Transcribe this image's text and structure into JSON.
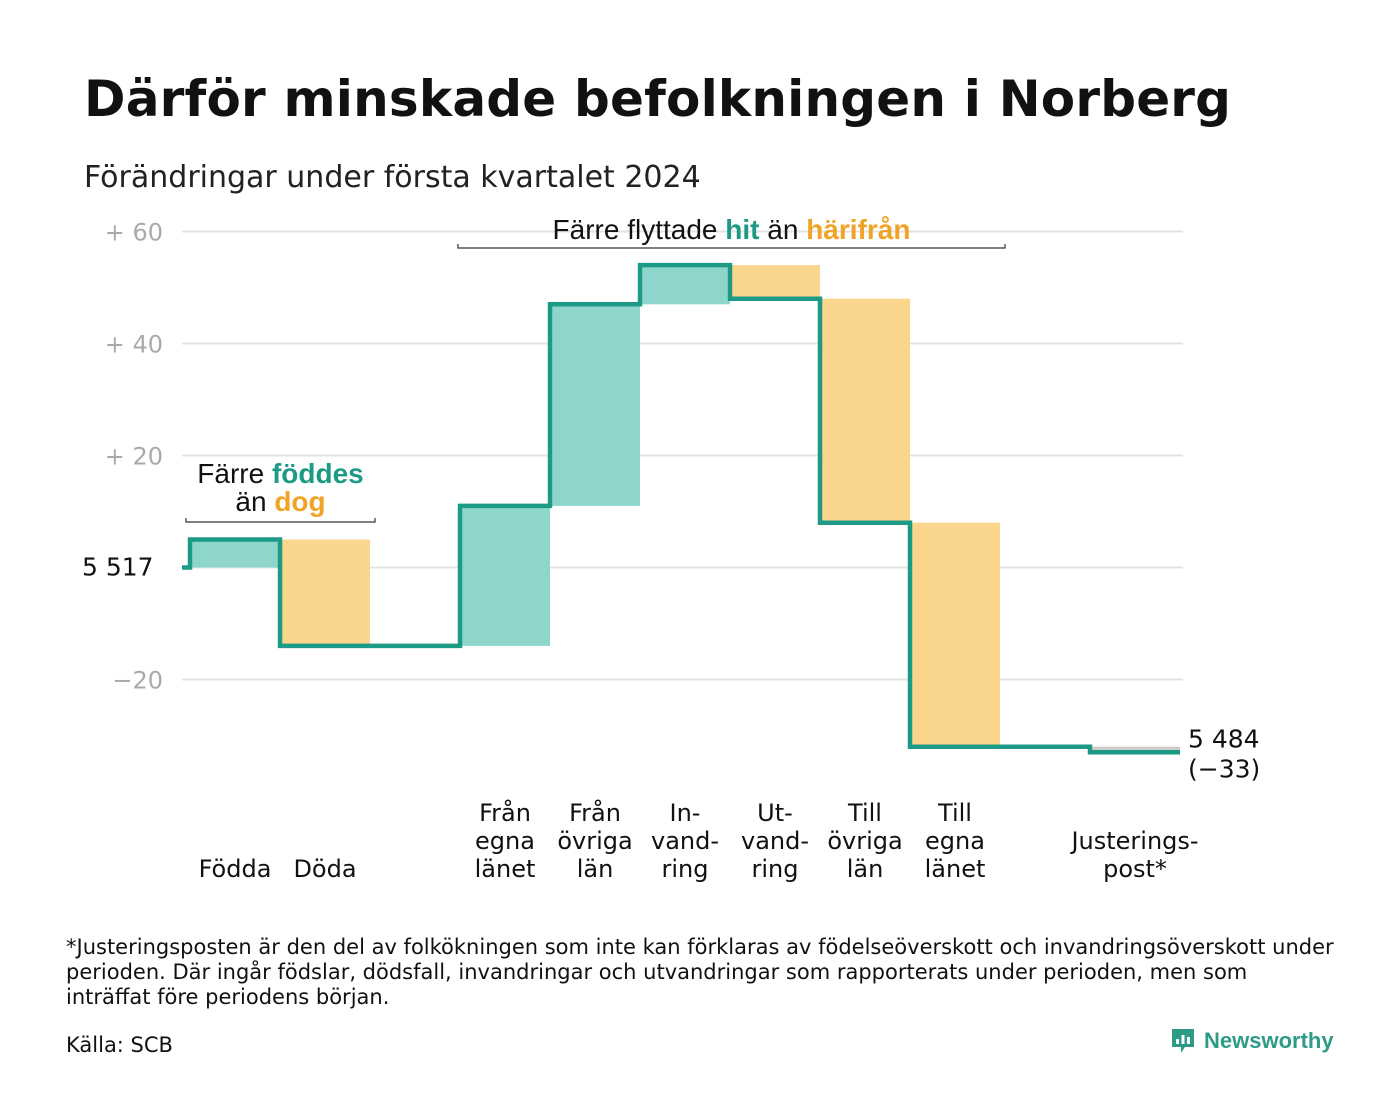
{
  "title": "Därför minskade befolkningen i Norberg",
  "subtitle": "Förändringar under första kvartalet 2024",
  "footnote": "*Justeringsposten är den del av folkökningen som inte kan förklaras av födelseöverskott och invandringsöverskott under perioden. Där ingår födslar, dödsfall, invandringar och utvandringar som rapporterats under perioden, men som inträffat före periodens början.",
  "source": "Källa: SCB",
  "brand": {
    "name": "Newsworthy",
    "icon": "newsworthy-logo-icon"
  },
  "colors": {
    "increase": "#8ed6cc",
    "decrease": "#fad58c",
    "line": "#1d9a85",
    "adjustment": "#cccccc",
    "grid": "#e3e3e3",
    "teal_text": "#1d9a85",
    "orange_text": "#f0a327"
  },
  "chart_data": {
    "type": "waterfall",
    "start": {
      "label": "5  517",
      "value": 0
    },
    "end": {
      "label": "5 484",
      "change_label": "(−33)",
      "value": -33
    },
    "yticks": [
      {
        "value": 60,
        "label": "+  60"
      },
      {
        "value": 40,
        "label": "+  40"
      },
      {
        "value": 20,
        "label": "+  20"
      },
      {
        "value": 0,
        "label": "5  517"
      },
      {
        "value": -20,
        "label": "−20"
      }
    ],
    "ylim": [
      -40,
      60
    ],
    "grid": true,
    "steps": [
      {
        "lines": [
          "Födda"
        ],
        "change": 5,
        "kind": "increase"
      },
      {
        "lines": [
          "Döda"
        ],
        "change": -19,
        "kind": "decrease"
      },
      {
        "lines": [],
        "change": 0,
        "kind": "gap"
      },
      {
        "lines": [
          "Från",
          "egna",
          "länet"
        ],
        "change": 25,
        "kind": "increase"
      },
      {
        "lines": [
          "Från",
          "övriga",
          "län"
        ],
        "change": 36,
        "kind": "increase"
      },
      {
        "lines": [
          "In-",
          "vand-",
          "ring"
        ],
        "change": 7,
        "kind": "increase"
      },
      {
        "lines": [
          "Ut-",
          "vand-",
          "ring"
        ],
        "change": -6,
        "kind": "decrease"
      },
      {
        "lines": [
          "Till",
          "övriga",
          "län"
        ],
        "change": -40,
        "kind": "decrease"
      },
      {
        "lines": [
          "Till",
          "egna",
          "länet"
        ],
        "change": -40,
        "kind": "decrease"
      },
      {
        "lines": [],
        "change": 0,
        "kind": "gap"
      },
      {
        "lines": [
          "Justerings-",
          "post*"
        ],
        "change": -1,
        "kind": "adjustment"
      }
    ],
    "annotations": [
      {
        "parts": [
          {
            "text": "Färre ",
            "color": "dark"
          },
          {
            "text": "föddes",
            "color": "teal"
          }
        ],
        "line2": [
          {
            "text": "än ",
            "color": "dark"
          },
          {
            "text": "dog",
            "color": "orange"
          }
        ],
        "from_step": 0,
        "to_step": 1
      },
      {
        "parts": [
          {
            "text": "Färre flyttade ",
            "color": "dark"
          },
          {
            "text": "hit",
            "color": "teal"
          },
          {
            "text": " än ",
            "color": "dark"
          },
          {
            "text": "härifrån",
            "color": "orange"
          }
        ],
        "from_step": 3,
        "to_step": 8
      }
    ]
  }
}
